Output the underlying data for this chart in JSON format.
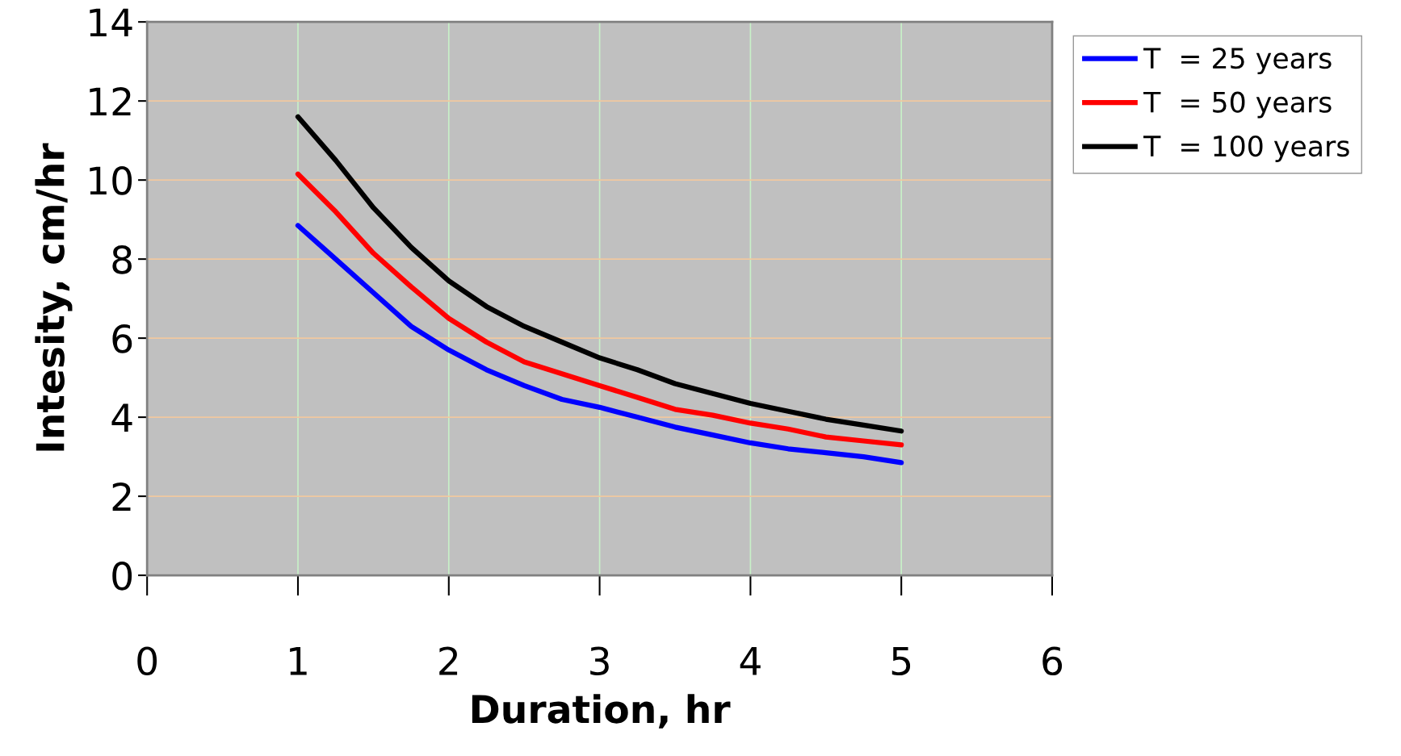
{
  "chart_data": {
    "type": "line",
    "xlabel": "Duration, hr",
    "ylabel": "Intesity, cm/hr",
    "x": [
      1,
      1.25,
      1.5,
      1.75,
      2,
      2.25,
      2.5,
      2.75,
      3,
      3.25,
      3.5,
      3.75,
      4,
      4.25,
      4.5,
      4.75,
      5
    ],
    "series": [
      {
        "name": "T  = 25 years",
        "color": "#0000ff",
        "values": [
          8.85,
          8.0,
          7.15,
          6.3,
          5.7,
          5.2,
          4.8,
          4.45,
          4.25,
          4.0,
          3.75,
          3.55,
          3.35,
          3.2,
          3.1,
          3.0,
          2.85
        ]
      },
      {
        "name": "T  = 50 years",
        "color": "#ff0000",
        "values": [
          10.15,
          9.2,
          8.15,
          7.3,
          6.5,
          5.9,
          5.4,
          5.1,
          4.8,
          4.5,
          4.2,
          4.05,
          3.85,
          3.7,
          3.5,
          3.4,
          3.3
        ]
      },
      {
        "name": "T  = 100 years",
        "color": "#000000",
        "values": [
          11.6,
          10.5,
          9.3,
          8.3,
          7.45,
          6.8,
          6.3,
          5.9,
          5.5,
          5.2,
          4.85,
          4.6,
          4.35,
          4.15,
          3.95,
          3.8,
          3.65
        ]
      }
    ],
    "xlim": [
      0,
      6
    ],
    "xticks": [
      0,
      1,
      2,
      3,
      4,
      5,
      6
    ],
    "ylim": [
      0,
      14
    ],
    "yticks": [
      0,
      2,
      4,
      6,
      8,
      10,
      12,
      14
    ],
    "grid": true,
    "legend": "top right",
    "marker": "none",
    "line_style": "solid"
  }
}
